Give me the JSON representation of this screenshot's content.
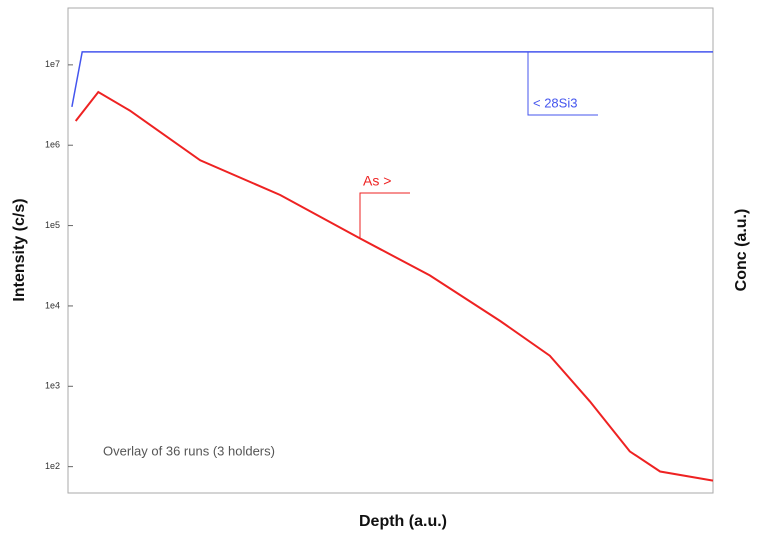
{
  "chart_data": {
    "type": "line",
    "y_axis_label": "Intensity (c/s)",
    "y2_axis_label": "Conc (a.u.)",
    "x_axis_label": "Depth (a.u.)",
    "annotation": "Overlay of 36 runs (3 holders)",
    "log_y": true,
    "xlim": [
      0,
      100
    ],
    "ylim": [
      47,
      51000000
    ],
    "yticks": [
      {
        "value": 100,
        "label": "1e2"
      },
      {
        "value": 1000,
        "label": "1e3"
      },
      {
        "value": 10000,
        "label": "1e4"
      },
      {
        "value": 100000,
        "label": "1e5"
      },
      {
        "value": 1000000,
        "label": "1e6"
      },
      {
        "value": 10000000,
        "label": "1e7"
      }
    ],
    "series": [
      {
        "label": "As >",
        "color": "#ee2222",
        "x": [
          1.2,
          4.7,
          9.6,
          20.5,
          32.9,
          45.3,
          56.1,
          67,
          74.7,
          80.9,
          87.1,
          91.8,
          100
        ],
        "values": [
          2000000,
          4600000,
          2700000,
          650000,
          240000,
          69000,
          24000,
          6500,
          2400,
          650,
          155,
          87,
          67
        ]
      },
      {
        "label": "< 28Si3",
        "color": "#4455ee",
        "x": [
          0.6,
          2.2,
          100
        ],
        "values": [
          3000000,
          14500000,
          14500000
        ]
      }
    ]
  }
}
